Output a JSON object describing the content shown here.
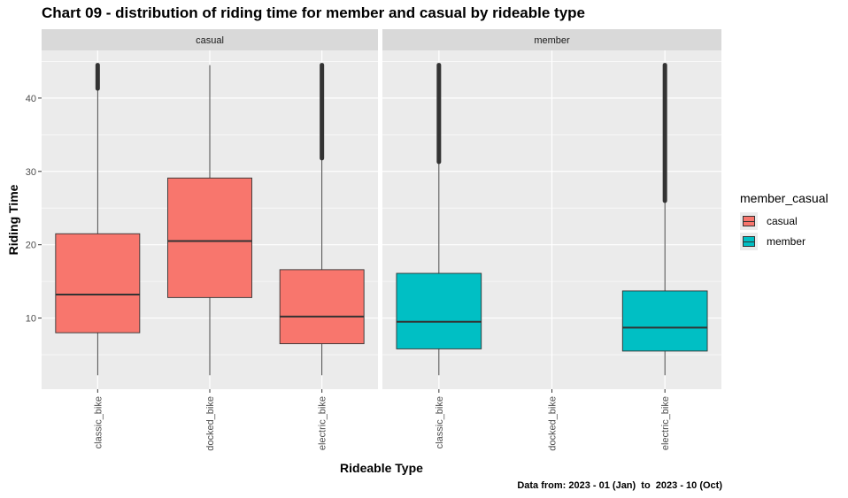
{
  "chart_data": {
    "type": "boxplot",
    "title": "Chart 09 - distribution of riding time for member and casual by rideable type",
    "xlabel": "Rideable Type",
    "ylabel": "Riding Time",
    "caption": "Data from: 2023 - 01 (Jan)  to  2023 - 10 (Oct)",
    "ylim": [
      0.3,
      46.5
    ],
    "yticks": [
      10,
      20,
      30,
      40
    ],
    "grid": true,
    "legend_position": "right",
    "legend_title": "member_casual",
    "categories": [
      "classic_bike",
      "docked_bike",
      "electric_bike"
    ],
    "facets": [
      {
        "label": "casual",
        "color": "#F8766D",
        "boxes": [
          {
            "category": "classic_bike",
            "min": 2.2,
            "q1": 8.0,
            "median": 13.2,
            "q3": 21.5,
            "max": 41.3,
            "outlier_top": 44.5
          },
          {
            "category": "docked_bike",
            "min": 2.2,
            "q1": 12.8,
            "median": 20.5,
            "q3": 29.1,
            "max": 44.5,
            "outlier_top": null
          },
          {
            "category": "electric_bike",
            "min": 2.2,
            "q1": 6.5,
            "median": 10.2,
            "q3": 16.6,
            "max": 31.8,
            "outlier_top": 44.5
          }
        ]
      },
      {
        "label": "member",
        "color": "#00BFC4",
        "boxes": [
          {
            "category": "classic_bike",
            "min": 2.2,
            "q1": 5.8,
            "median": 9.5,
            "q3": 16.1,
            "max": 31.3,
            "outlier_top": 44.5
          },
          {
            "category": "electric_bike",
            "min": 2.2,
            "q1": 5.5,
            "median": 8.7,
            "q3": 13.7,
            "max": 26.0,
            "outlier_top": 44.5
          }
        ]
      }
    ],
    "legend": [
      {
        "label": "casual",
        "color": "#F8766D"
      },
      {
        "label": "member",
        "color": "#00BFC4"
      }
    ]
  }
}
